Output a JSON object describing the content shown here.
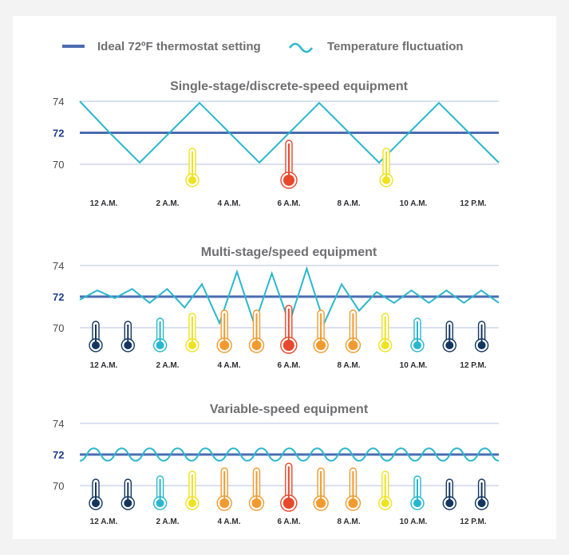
{
  "colors": {
    "background": "#f3f3f4",
    "panel": "#ffffff",
    "ideal_line": "#4b6cb1",
    "fluctuation": "#2bb7cf",
    "grid": "#d9e0f1",
    "thermo_levels": [
      "#12365f",
      "#27b7cf",
      "#f0e21e",
      "#f29a2e",
      "#e8482b"
    ]
  },
  "legend": {
    "ideal_label": "Ideal 72ºF thermostat setting",
    "fluctuation_label": "Temperature fluctuation"
  },
  "chart_data": [
    {
      "type": "line",
      "title": "Single-stage/discrete-speed equipment",
      "y_ticks": [
        "74",
        "72",
        "70"
      ],
      "ylim": [
        69,
        75
      ],
      "ideal": 72,
      "x_labels": [
        "12 A.M.",
        "2 A.M.",
        "4 A.M.",
        "6 A.M.",
        "8 A.M.",
        "10 A.M.",
        "12 P.M."
      ],
      "x": [
        0,
        1,
        2,
        3,
        4,
        5,
        6,
        7,
        8,
        9,
        10,
        11,
        12,
        13,
        14
      ],
      "series": [
        {
          "values": [
            74,
            72,
            70.1,
            72,
            73.9,
            72,
            70.1,
            72,
            73.9,
            72,
            70.1,
            72,
            73.9,
            72,
            70.1
          ]
        }
      ],
      "thermometers": [
        {
          "x": 2.9,
          "level": 2
        },
        {
          "x": 5.6,
          "level": 4
        },
        {
          "x": 8.7,
          "level": 2
        }
      ]
    },
    {
      "type": "line",
      "title": "Multi-stage/speed equipment",
      "y_ticks": [
        "74",
        "72",
        "70"
      ],
      "ylim": [
        69,
        75
      ],
      "ideal": 72,
      "x_labels": [
        "12 A.M.",
        "2 A.M.",
        "4 A.M.",
        "6 A.M.",
        "8 A.M.",
        "10 A.M.",
        "12 P.M."
      ],
      "x": [
        0,
        0.5,
        1,
        1.5,
        2,
        2.5,
        3,
        3.5,
        4,
        4.5,
        5,
        5.5,
        6,
        6.5,
        7,
        7.5,
        8,
        8.5,
        9,
        9.5,
        10,
        10.5,
        11,
        11.5,
        12
      ],
      "series": [
        {
          "values": [
            71.8,
            72.4,
            71.9,
            72.5,
            71.6,
            72.5,
            71.3,
            72.8,
            70.3,
            73.6,
            70.2,
            73.5,
            70.3,
            73.8,
            70.3,
            72.8,
            71.1,
            72.3,
            71.6,
            72.4,
            71.6,
            72.4,
            71.6,
            72.4,
            71.6
          ]
        }
      ],
      "thermometers": [
        {
          "x": 0.5,
          "level": 0
        },
        {
          "x": 1.4,
          "level": 0
        },
        {
          "x": 2.1,
          "level": 1
        },
        {
          "x": 2.9,
          "level": 2
        },
        {
          "x": 3.7,
          "level": 3
        },
        {
          "x": 4.5,
          "level": 3
        },
        {
          "x": 5.4,
          "level": 4
        },
        {
          "x": 6.2,
          "level": 3
        },
        {
          "x": 7.0,
          "level": 3
        },
        {
          "x": 7.8,
          "level": 2
        },
        {
          "x": 8.7,
          "level": 1
        },
        {
          "x": 9.5,
          "level": 0
        },
        {
          "x": 10.3,
          "level": 0
        }
      ]
    },
    {
      "type": "line",
      "title": "Variable-speed equipment",
      "y_ticks": [
        "74",
        "72",
        "70"
      ],
      "ylim": [
        69,
        75
      ],
      "ideal": 72,
      "x_labels": [
        "12 A.M.",
        "2 A.M.",
        "4 A.M.",
        "6 A.M.",
        "8 A.M.",
        "10 A.M.",
        "12 P.M."
      ],
      "x": [
        0,
        0.5,
        1,
        1.5,
        2,
        2.5,
        3,
        3.5,
        4,
        4.5,
        5,
        5.5,
        6,
        6.5,
        7,
        7.5,
        8,
        8.5,
        9,
        9.5,
        10,
        10.5,
        11,
        11.5,
        12,
        12.5,
        13,
        13.5,
        14,
        14.5,
        15
      ],
      "series": [
        {
          "values": [
            71.6,
            72.4,
            71.6,
            72.4,
            71.6,
            72.4,
            71.6,
            72.4,
            71.6,
            72.4,
            71.6,
            72.4,
            71.6,
            72.4,
            71.6,
            72.4,
            71.6,
            72.4,
            71.6,
            72.4,
            71.6,
            72.4,
            71.6,
            72.4,
            71.6,
            72.4,
            71.6,
            72.4,
            71.6,
            72.4,
            71.6
          ]
        }
      ],
      "thermometers": [
        {
          "x": 0.5,
          "level": 0
        },
        {
          "x": 1.4,
          "level": 0
        },
        {
          "x": 2.1,
          "level": 1
        },
        {
          "x": 2.9,
          "level": 2
        },
        {
          "x": 3.7,
          "level": 3
        },
        {
          "x": 4.5,
          "level": 3
        },
        {
          "x": 5.4,
          "level": 4
        },
        {
          "x": 6.2,
          "level": 3
        },
        {
          "x": 7.0,
          "level": 3
        },
        {
          "x": 7.8,
          "level": 2
        },
        {
          "x": 8.7,
          "level": 1
        },
        {
          "x": 9.5,
          "level": 0
        },
        {
          "x": 10.3,
          "level": 0
        }
      ]
    }
  ]
}
